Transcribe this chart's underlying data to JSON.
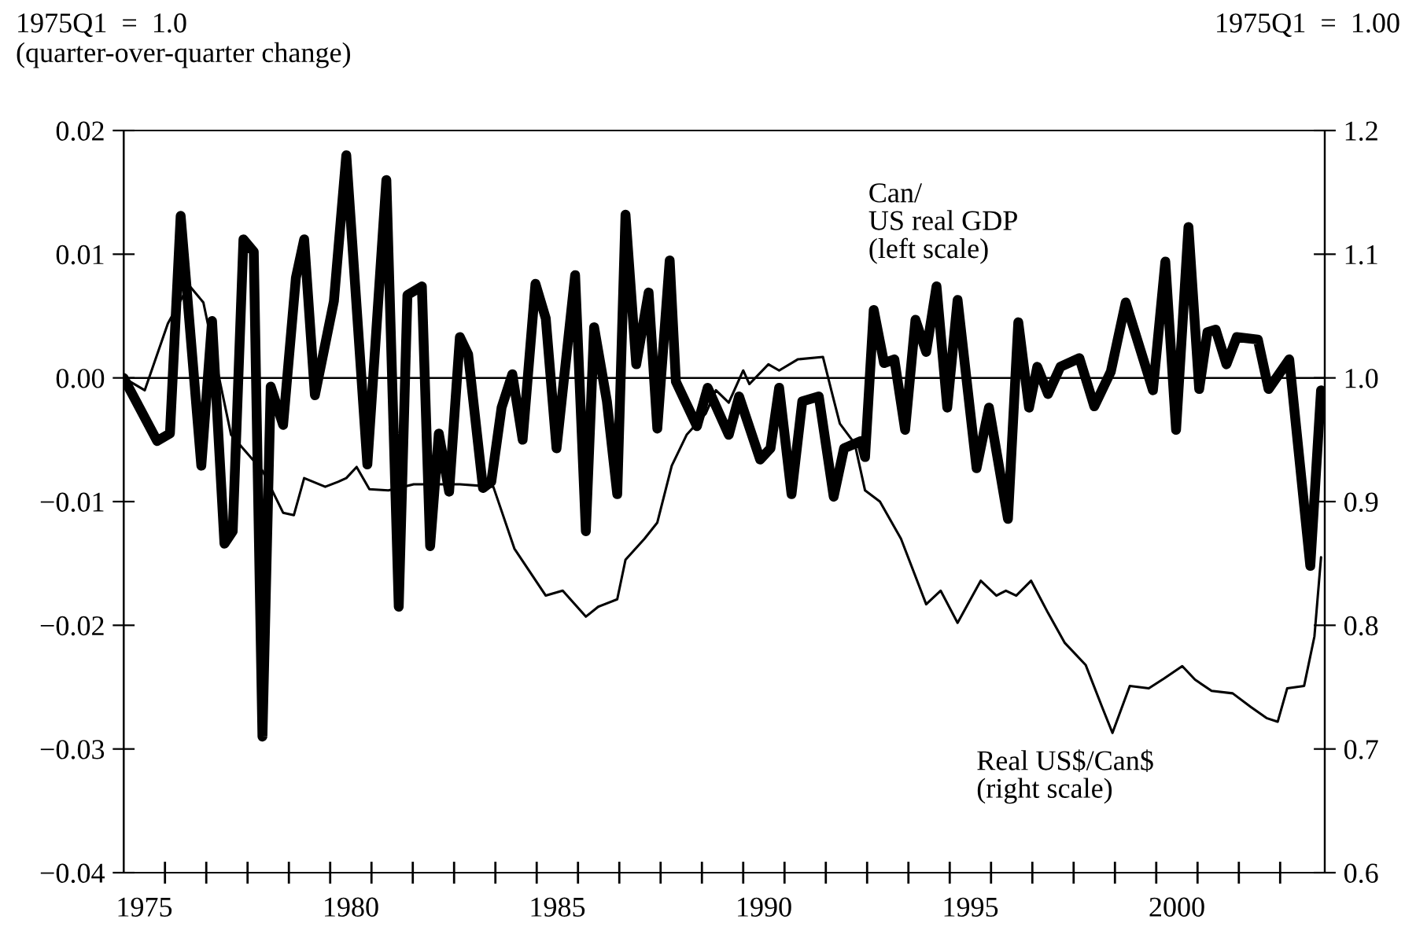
{
  "chart_data": {
    "type": "line",
    "ylabel": "1975Q1  =  1.0\n(quarter-over-quarter change)",
    "y2label": "1975Q1  =  1.00",
    "series": [
      {
        "name": "Can/\nUS real GDP\n(left scale)",
        "color": "#000000",
        "axis": "y",
        "x": [
          1975.0,
          1975.81,
          1976.12,
          1976.38,
          1976.88,
          1977.14,
          1977.44,
          1977.64,
          1977.9,
          1978.15,
          1978.36,
          1978.56,
          1978.86,
          1979.17,
          1979.37,
          1979.63,
          1980.09,
          1980.39,
          1980.9,
          1981.36,
          1981.66,
          1981.87,
          1982.22,
          1982.42,
          1982.63,
          1982.88,
          1983.14,
          1983.34,
          1983.7,
          1983.9,
          1984.15,
          1984.41,
          1984.66,
          1984.97,
          1985.22,
          1985.48,
          1985.93,
          1986.19,
          1986.39,
          1986.7,
          1986.95,
          1987.15,
          1987.41,
          1987.71,
          1987.92,
          1988.22,
          1988.37,
          1988.88,
          1989.14,
          1989.65,
          1989.9,
          1990.41,
          1990.66,
          1990.87,
          1991.17,
          1991.43,
          1991.83,
          1992.19,
          1992.44,
          1992.85,
          1992.95,
          1993.16,
          1993.41,
          1993.66,
          1993.92,
          1994.17,
          1994.43,
          1994.68,
          1994.94,
          1995.19,
          1995.65,
          1995.95,
          1996.41,
          1996.66,
          1996.92,
          1997.12,
          1997.38,
          1997.68,
          1998.14,
          1998.5,
          1998.9,
          1999.26,
          1999.92,
          2000.22,
          2000.48,
          2000.78,
          2001.04,
          2001.24,
          2001.44,
          2001.7,
          2001.95,
          2002.46,
          2002.72,
          2003.22,
          2003.73,
          2003.99
        ],
        "values": [
          0,
          -0.0051,
          -0.0045,
          0.0131,
          -0.0071,
          0.0046,
          -0.0134,
          -0.0124,
          0.0112,
          0.0102,
          -0.029,
          -0.0007,
          -0.0038,
          0.0081,
          0.0112,
          -0.0014,
          0.0062,
          0.018,
          -0.007,
          0.016,
          -0.0185,
          0.0067,
          0.0074,
          -0.0136,
          -0.0045,
          -0.0092,
          0.0033,
          0.0019,
          -0.0089,
          -0.0084,
          -0.0024,
          0.0003,
          -0.005,
          0.0076,
          0.0048,
          -0.0057,
          0.0083,
          -0.0124,
          0.0041,
          -0.0019,
          -0.0094,
          0.0132,
          0.0011,
          0.0069,
          -0.0041,
          0.0095,
          -0.0003,
          -0.0039,
          -0.0008,
          -0.0046,
          -0.0015,
          -0.0066,
          -0.0057,
          -0.0008,
          -0.0094,
          -0.0019,
          -0.0015,
          -0.0096,
          -0.0057,
          -0.0051,
          -0.0064,
          0.0055,
          0.0012,
          0.0015,
          -0.0042,
          0.0047,
          0.0021,
          0.0074,
          -0.0024,
          0.0063,
          -0.0073,
          -0.0024,
          -0.0114,
          0.0045,
          -0.0024,
          0.0009,
          -0.0013,
          0.0009,
          0.0016,
          -0.0023,
          0.0005,
          0.0061,
          -0.001,
          0.0094,
          -0.0042,
          0.0122,
          -0.0009,
          0.0037,
          0.0039,
          0.0011,
          0.0033,
          0.0031,
          -0.0009,
          0.0015,
          -0.0152,
          -0.001
        ]
      },
      {
        "name": "Real US$/Can$\n(right scale)",
        "color": "#000000",
        "axis": "y2",
        "x": [
          1975.0,
          1975.51,
          1976.07,
          1976.58,
          1976.93,
          1977.6,
          1978.36,
          1978.86,
          1979.12,
          1979.37,
          1979.88,
          1980.19,
          1980.39,
          1980.64,
          1980.95,
          1981.41,
          1982.02,
          1983.14,
          1983.95,
          1984.46,
          1985.22,
          1985.63,
          1986.19,
          1986.49,
          1986.95,
          1987.15,
          1987.61,
          1987.92,
          1988.27,
          1988.63,
          1989.09,
          1989.34,
          1989.65,
          1990.0,
          1990.15,
          1990.61,
          1990.87,
          1991.32,
          1991.93,
          1992.14,
          1992.34,
          1992.7,
          1992.95,
          1993.31,
          1993.82,
          1994.43,
          1994.78,
          1995.19,
          1995.75,
          1996.13,
          1996.36,
          1996.61,
          1996.97,
          1997.38,
          1997.78,
          1998.29,
          1998.7,
          1998.94,
          1999.36,
          1999.82,
          2000.19,
          2000.63,
          2000.94,
          2001.34,
          2001.85,
          2002.29,
          2002.67,
          2002.94,
          2003.17,
          2003.58,
          2003.83,
          2003.99
        ],
        "values": [
          1.0,
          0.99,
          1.044,
          1.075,
          1.061,
          0.954,
          0.925,
          0.891,
          0.889,
          0.919,
          0.912,
          0.916,
          0.919,
          0.928,
          0.91,
          0.909,
          0.914,
          0.914,
          0.912,
          0.862,
          0.824,
          0.828,
          0.807,
          0.815,
          0.821,
          0.853,
          0.87,
          0.883,
          0.929,
          0.954,
          0.971,
          0.99,
          0.98,
          1.006,
          0.995,
          1.011,
          1.006,
          1.015,
          1.017,
          0.989,
          0.963,
          0.947,
          0.909,
          0.9,
          0.87,
          0.817,
          0.828,
          0.802,
          0.836,
          0.824,
          0.828,
          0.824,
          0.836,
          0.81,
          0.786,
          0.768,
          0.733,
          0.713,
          0.751,
          0.749,
          0.757,
          0.767,
          0.756,
          0.747,
          0.745,
          0.734,
          0.725,
          0.722,
          0.749,
          0.751,
          0.791,
          0.855
        ]
      }
    ],
    "xlim": [
      1975,
      2004.08
    ],
    "xticks": [
      {
        "value": 1975.5,
        "label": "1975"
      },
      {
        "value": 1980.5,
        "label": "1980"
      },
      {
        "value": 1985.5,
        "label": "1985"
      },
      {
        "value": 1990.5,
        "label": "1990"
      },
      {
        "value": 1995.5,
        "label": "1995"
      },
      {
        "value": 2000.5,
        "label": "2000"
      },
      {
        "value": 1976,
        "label": null
      },
      {
        "value": 1977,
        "label": null
      },
      {
        "value": 1978,
        "label": null
      },
      {
        "value": 1979,
        "label": null
      },
      {
        "value": 1980,
        "label": null
      },
      {
        "value": 1981,
        "label": null
      },
      {
        "value": 1982,
        "label": null
      },
      {
        "value": 1983,
        "label": null
      },
      {
        "value": 1984,
        "label": null
      },
      {
        "value": 1985,
        "label": null
      },
      {
        "value": 1986,
        "label": null
      },
      {
        "value": 1987,
        "label": null
      },
      {
        "value": 1988,
        "label": null
      },
      {
        "value": 1989,
        "label": null
      },
      {
        "value": 1990,
        "label": null
      },
      {
        "value": 1991,
        "label": null
      },
      {
        "value": 1992,
        "label": null
      },
      {
        "value": 1993,
        "label": null
      },
      {
        "value": 1994,
        "label": null
      },
      {
        "value": 1995,
        "label": null
      },
      {
        "value": 1996,
        "label": null
      },
      {
        "value": 1997,
        "label": null
      },
      {
        "value": 1998,
        "label": null
      },
      {
        "value": 1999,
        "label": null
      },
      {
        "value": 2000,
        "label": null
      },
      {
        "value": 2001,
        "label": null
      },
      {
        "value": 2002,
        "label": null
      },
      {
        "value": 2003,
        "label": null
      }
    ],
    "ylim": [
      -0.04,
      0.02
    ],
    "yticks": [
      {
        "value": 0.02,
        "label": "0.02"
      },
      {
        "value": 0.01,
        "label": "0.01"
      },
      {
        "value": 0,
        "label": "0.00"
      },
      {
        "value": -0.01,
        "label": "−0.01"
      },
      {
        "value": -0.02,
        "label": "−0.02"
      },
      {
        "value": -0.03,
        "label": "−0.03"
      },
      {
        "value": -0.04,
        "label": "−0.04"
      }
    ],
    "y2lim": [
      0.6,
      1.2
    ],
    "y2ticks": [
      {
        "value": 1.2,
        "label": "1.2"
      },
      {
        "value": 1.1,
        "label": "1.1"
      },
      {
        "value": 1.0,
        "label": "1.0"
      },
      {
        "value": 0.9,
        "label": "0.9"
      },
      {
        "value": 0.8,
        "label": "0.8"
      },
      {
        "value": 0.7,
        "label": "0.7"
      },
      {
        "value": 0.6,
        "label": "0.6"
      }
    ],
    "ref_lines": [
      {
        "axis": "y",
        "value": 0,
        "color": "#000000"
      }
    ],
    "grid": false,
    "legend": false
  }
}
